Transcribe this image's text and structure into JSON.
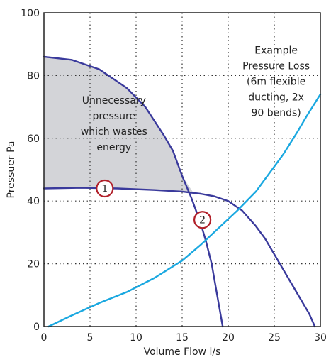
{
  "chart_data": {
    "type": "line",
    "title": "",
    "xlabel": "Volume Flow l/s",
    "ylabel": "Pressuer Pa",
    "xlim": [
      0,
      30
    ],
    "ylim": [
      0,
      100
    ],
    "x_ticks": [
      0,
      5,
      10,
      15,
      20,
      25,
      30
    ],
    "y_ticks": [
      0,
      20,
      40,
      60,
      80,
      100
    ],
    "x_tick_labels": [
      "0",
      "5",
      "10",
      "15",
      "20",
      "25",
      "30"
    ],
    "y_tick_labels": [
      "0",
      "20",
      "40",
      "60",
      "80",
      "100"
    ],
    "grid": true,
    "grid_style": "dotted",
    "series": [
      {
        "color": "#3a3a9c",
        "points": [
          [
            0,
            86
          ],
          [
            3,
            85
          ],
          [
            6,
            82
          ],
          [
            9,
            76
          ],
          [
            11,
            70
          ],
          [
            13,
            61
          ],
          [
            14,
            56
          ],
          [
            15,
            48
          ],
          [
            16,
            41
          ],
          [
            17,
            33
          ],
          [
            17.6,
            27
          ],
          [
            18.2,
            20
          ],
          [
            18.8,
            10
          ],
          [
            19.4,
            0
          ]
        ]
      },
      {
        "color": "#3a3a9c",
        "points": [
          [
            0,
            44
          ],
          [
            4,
            44.2
          ],
          [
            8,
            44
          ],
          [
            12,
            43.5
          ],
          [
            15,
            43
          ],
          [
            17,
            42.3
          ],
          [
            18.5,
            41.5
          ],
          [
            20,
            40
          ],
          [
            21.5,
            37
          ],
          [
            23,
            32
          ],
          [
            24,
            28
          ],
          [
            25,
            23
          ],
          [
            26,
            18
          ],
          [
            27,
            13
          ],
          [
            28,
            8
          ],
          [
            28.8,
            4
          ],
          [
            29.4,
            0
          ]
        ]
      },
      {
        "color": "#1aa8e0",
        "points": [
          [
            0.5,
            0
          ],
          [
            3,
            3.5
          ],
          [
            6,
            7.5
          ],
          [
            9,
            11
          ],
          [
            12,
            15.5
          ],
          [
            15,
            21
          ],
          [
            17,
            26
          ],
          [
            19,
            31.5
          ],
          [
            21,
            37
          ],
          [
            23,
            43
          ],
          [
            24.5,
            49
          ],
          [
            26,
            55
          ],
          [
            27.5,
            62
          ],
          [
            28.5,
            67
          ],
          [
            30,
            74
          ]
        ]
      }
    ],
    "shaded_region": {
      "color": "#d3d4d8",
      "upper": [
        [
          0,
          86
        ],
        [
          3,
          85
        ],
        [
          6,
          82
        ],
        [
          9,
          76
        ],
        [
          11,
          70
        ],
        [
          13,
          61
        ],
        [
          14,
          56
        ],
        [
          15,
          48
        ],
        [
          16.2,
          42.7
        ]
      ],
      "lower": [
        [
          0,
          44
        ],
        [
          4,
          44.2
        ],
        [
          8,
          44
        ],
        [
          12,
          43.5
        ],
        [
          15,
          43
        ],
        [
          16.2,
          42.7
        ]
      ]
    },
    "annotations": [
      {
        "lines": [
          "Unnecessary",
          "pressure",
          "which wastes",
          "energy"
        ],
        "x": 7.6,
        "y": 71
      },
      {
        "lines": [
          "Example",
          "Pressure Loss",
          "(6m flexible",
          "ducting, 2x",
          "90 bends)"
        ],
        "x": 25.2,
        "y": 87
      }
    ],
    "markers": [
      {
        "label": "1",
        "x": 6.6,
        "y": 44,
        "color": "#b1202a"
      },
      {
        "label": "2",
        "x": 17.2,
        "y": 34,
        "color": "#b1202a"
      }
    ]
  }
}
